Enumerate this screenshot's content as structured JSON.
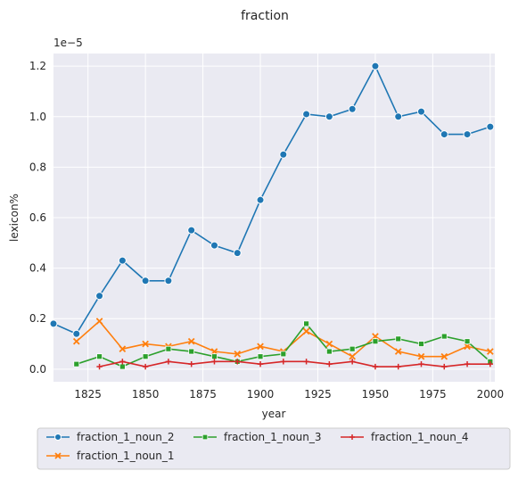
{
  "chart_data": {
    "type": "line",
    "title": "fraction",
    "xlabel": "year",
    "ylabel": "lexicon%",
    "offset_text": "1e−5",
    "xlim": [
      1810,
      2002
    ],
    "ylim": [
      -0.05,
      1.25
    ],
    "x_ticks": [
      1825,
      1850,
      1875,
      1900,
      1925,
      1950,
      1975,
      2000
    ],
    "y_ticks": [
      0.0,
      0.2,
      0.4,
      0.6,
      0.8,
      1.0,
      1.2
    ],
    "y_tick_labels": [
      "0.0",
      "0.2",
      "0.4",
      "0.6",
      "0.8",
      "1.0",
      "1.2"
    ],
    "grid": true,
    "legend_position": "bottom",
    "background": "#eaeaf2",
    "series": [
      {
        "name": "fraction_1_noun_2",
        "color": "#1f77b4",
        "marker": "circle",
        "x": [
          1810,
          1820,
          1830,
          1840,
          1850,
          1860,
          1870,
          1880,
          1890,
          1900,
          1910,
          1920,
          1930,
          1940,
          1950,
          1960,
          1970,
          1980,
          1990,
          2000
        ],
        "y": [
          0.18,
          0.14,
          0.29,
          0.43,
          0.35,
          0.35,
          0.55,
          0.49,
          0.46,
          0.67,
          0.85,
          1.01,
          1.0,
          1.03,
          1.2,
          1.0,
          1.02,
          0.93,
          0.93,
          0.96
        ]
      },
      {
        "name": "fraction_1_noun_1",
        "color": "#ff7f0e",
        "marker": "x",
        "x": [
          1820,
          1830,
          1840,
          1850,
          1860,
          1870,
          1880,
          1890,
          1900,
          1910,
          1920,
          1930,
          1940,
          1950,
          1960,
          1970,
          1980,
          1990,
          2000
        ],
        "y": [
          0.11,
          0.19,
          0.08,
          0.1,
          0.09,
          0.11,
          0.07,
          0.06,
          0.09,
          0.07,
          0.15,
          0.1,
          0.05,
          0.13,
          0.07,
          0.05,
          0.05,
          0.09,
          0.07
        ]
      },
      {
        "name": "fraction_1_noun_3",
        "color": "#2ca02c",
        "marker": "square",
        "x": [
          1820,
          1830,
          1840,
          1850,
          1860,
          1870,
          1880,
          1890,
          1900,
          1910,
          1920,
          1930,
          1940,
          1950,
          1960,
          1970,
          1980,
          1990,
          2000
        ],
        "y": [
          0.02,
          0.05,
          0.01,
          0.05,
          0.08,
          0.07,
          0.05,
          0.03,
          0.05,
          0.06,
          0.18,
          0.07,
          0.08,
          0.11,
          0.12,
          0.1,
          0.13,
          0.11,
          0.03
        ]
      },
      {
        "name": "fraction_1_noun_4",
        "color": "#d62728",
        "marker": "plus",
        "x": [
          1830,
          1840,
          1850,
          1860,
          1870,
          1880,
          1890,
          1900,
          1910,
          1920,
          1930,
          1940,
          1950,
          1960,
          1970,
          1980,
          1990,
          2000
        ],
        "y": [
          0.01,
          0.03,
          0.01,
          0.03,
          0.02,
          0.03,
          0.03,
          0.02,
          0.03,
          0.03,
          0.02,
          0.03,
          0.01,
          0.01,
          0.02,
          0.01,
          0.02,
          0.02
        ]
      }
    ],
    "legend_order": [
      "fraction_1_noun_2",
      "fraction_1_noun_3",
      "fraction_1_noun_4",
      "fraction_1_noun_1"
    ]
  }
}
